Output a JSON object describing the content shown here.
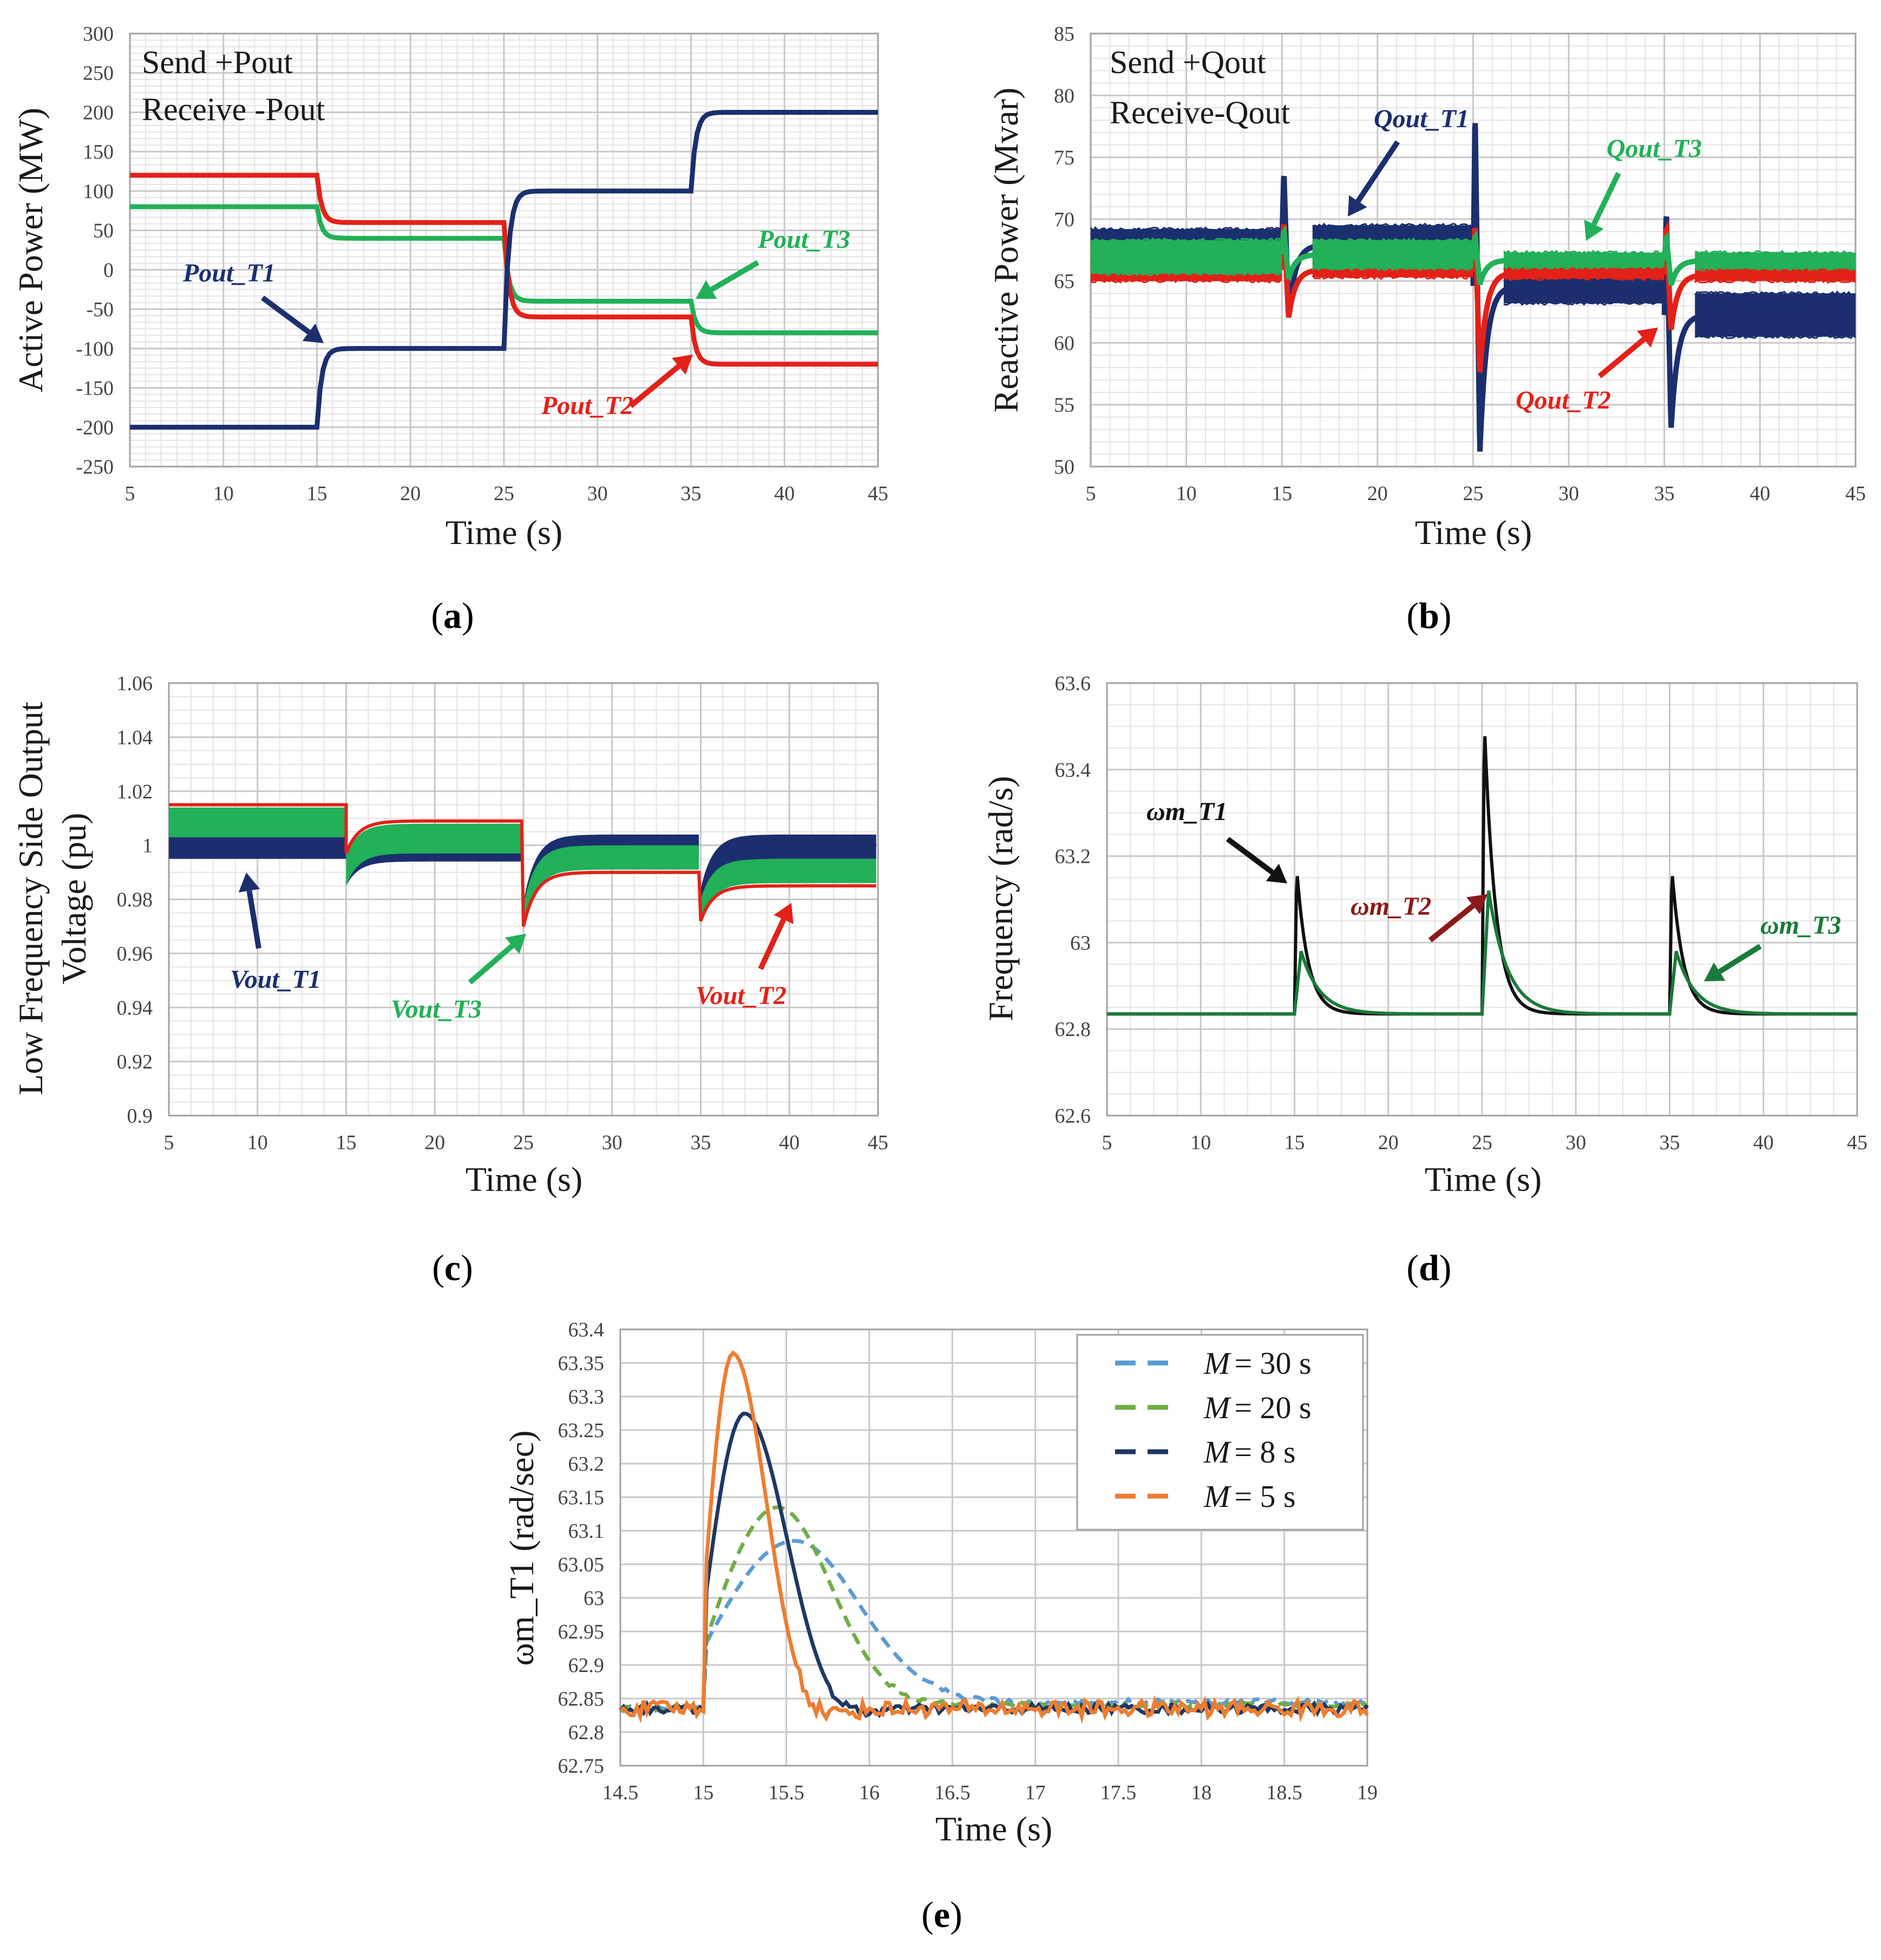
{
  "chart_data": [
    {
      "id": "a",
      "type": "line",
      "caption": "a",
      "xlabel": "Time (s)",
      "ylabel": "Active Power (MW)",
      "xlim": [
        5,
        45
      ],
      "ylim": [
        -250,
        300
      ],
      "xticks": [
        "5",
        "10",
        "15",
        "20",
        "25",
        "30",
        "35",
        "40",
        "45"
      ],
      "yticks": [
        "-250",
        "-200",
        "-150",
        "-100",
        "-50",
        "0",
        "50",
        "100",
        "150",
        "200",
        "250",
        "300"
      ],
      "notes": [
        "Send +Pout",
        "Receive -Pout"
      ],
      "series": [
        {
          "name": "Pout_T1",
          "color": "#1b2f6e",
          "x": [
            5,
            15,
            45
          ],
          "y": [
            -200,
            -100,
            200
          ],
          "steps": [
            [
              5,
              -200
            ],
            [
              15,
              -100
            ],
            [
              25,
              100
            ],
            [
              35,
              200
            ]
          ]
        },
        {
          "name": "Pout_T2",
          "color": "#e32119",
          "steps": [
            [
              5,
              120
            ],
            [
              15,
              60
            ],
            [
              25,
              -60
            ],
            [
              35,
              -120
            ]
          ]
        },
        {
          "name": "Pout_T3",
          "color": "#22b058",
          "steps": [
            [
              5,
              80
            ],
            [
              15,
              40
            ],
            [
              25,
              -40
            ],
            [
              35,
              -80
            ]
          ]
        }
      ],
      "annotations": [
        {
          "label": "Pout_T1",
          "color": "#1b2f6e"
        },
        {
          "label": "Pout_T2",
          "color": "#e32119"
        },
        {
          "label": "Pout_T3",
          "color": "#22b058"
        }
      ]
    },
    {
      "id": "b",
      "type": "line",
      "caption": "b",
      "xlabel": "Time (s)",
      "ylabel": "Reactive Power (Mvar)",
      "xlim": [
        5,
        45
      ],
      "ylim": [
        50,
        85
      ],
      "xticks": [
        "5",
        "10",
        "15",
        "20",
        "25",
        "30",
        "35",
        "40",
        "45"
      ],
      "yticks": [
        "50",
        "55",
        "60",
        "65",
        "70",
        "75",
        "80",
        "85"
      ],
      "notes": [
        "Send +Qout",
        "Receive-Qout"
      ],
      "series": [
        {
          "name": "Qout_T1",
          "color": "#1b2f6e",
          "bands": [
            [
              5,
              15,
              66.5,
              69.2
            ],
            [
              15,
              25,
              66.3,
              69.5
            ],
            [
              25,
              35,
              63.2,
              66.0
            ],
            [
              35,
              45,
              60.5,
              64.0
            ]
          ],
          "spikes": [
            [
              15,
              74,
              62
            ],
            [
              25,
              79,
              51
            ],
            [
              35,
              71,
              53
            ]
          ]
        },
        {
          "name": "Qout_T2",
          "color": "#e32119",
          "bands": [
            [
              5,
              15,
              65.0,
              66.0
            ],
            [
              15,
              25,
              65.3,
              66.5
            ],
            [
              25,
              35,
              65.2,
              66.2
            ],
            [
              35,
              45,
              65.0,
              66.0
            ]
          ]
        },
        {
          "name": "Qout_T3",
          "color": "#22b058",
          "bands": [
            [
              5,
              15,
              65.6,
              68.3
            ],
            [
              15,
              25,
              66.0,
              68.3
            ],
            [
              25,
              35,
              66.1,
              67.3
            ],
            [
              35,
              45,
              66.0,
              67.3
            ]
          ]
        }
      ],
      "annotations": [
        {
          "label": "Qout_T1",
          "color": "#1b2f6e"
        },
        {
          "label": "Qout_T2",
          "color": "#e32119"
        },
        {
          "label": "Qout_T3",
          "color": "#22b058"
        }
      ]
    },
    {
      "id": "c",
      "type": "line",
      "caption": "c",
      "xlabel": "Time (s)",
      "ylabel": "Low Frequency Side Output Voltage (pu)",
      "ylabel_lines": [
        "Low Frequency Side Output",
        "Voltage (pu)"
      ],
      "xlim": [
        5,
        45
      ],
      "ylim": [
        0.9,
        1.06
      ],
      "xticks": [
        "5",
        "10",
        "15",
        "20",
        "25",
        "30",
        "35",
        "40",
        "45"
      ],
      "yticks": [
        "0.9",
        "0.92",
        "0.94",
        "0.96",
        "0.98",
        "1",
        "1.02",
        "1.04",
        "1.06"
      ],
      "series": [
        {
          "name": "Vout_T1",
          "color": "#1b2f6e",
          "bands": [
            [
              5,
              15,
              0.995,
              1.003
            ],
            [
              15,
              25,
              0.994,
              0.999
            ],
            [
              25,
              35,
              0.996,
              1.004
            ],
            [
              35,
              45,
              0.995,
              1.004
            ]
          ]
        },
        {
          "name": "Vout_T2",
          "color": "#e32119",
          "levels": [
            [
              5,
              15,
              1.015
            ],
            [
              15,
              25,
              1.009
            ],
            [
              25,
              35,
              0.99
            ],
            [
              35,
              45,
              0.985
            ]
          ]
        },
        {
          "name": "Vout_T3",
          "color": "#22b058",
          "bands": [
            [
              5,
              15,
              1.003,
              1.014
            ],
            [
              15,
              25,
              0.997,
              1.008
            ],
            [
              25,
              35,
              0.991,
              1.0
            ],
            [
              35,
              45,
              0.986,
              0.995
            ]
          ]
        }
      ],
      "annotations": [
        {
          "label": "Vout_T1",
          "color": "#1b2f6e"
        },
        {
          "label": "Vout_T3",
          "color": "#22b058"
        },
        {
          "label": "Vout_T2",
          "color": "#e32119"
        }
      ]
    },
    {
      "id": "d",
      "type": "line",
      "caption": "d",
      "xlabel": "Time (s)",
      "ylabel": "Frequency (rad/s)",
      "xlim": [
        5,
        45
      ],
      "ylim": [
        62.6,
        63.6
      ],
      "xticks": [
        "5",
        "10",
        "15",
        "20",
        "25",
        "30",
        "35",
        "40",
        "45"
      ],
      "yticks": [
        "62.6",
        "62.8",
        "63",
        "63.2",
        "63.4",
        "63.6"
      ],
      "baseline": 62.835,
      "series": [
        {
          "name": "ωm_T1",
          "color": "#111111",
          "peaks": [
            [
              15,
              63.17
            ],
            [
              25,
              63.51
            ],
            [
              35,
              63.17
            ]
          ]
        },
        {
          "name": "ωm_T2",
          "color": "#8b1a1a",
          "peaks": [
            [
              15,
              62.98
            ],
            [
              25,
              63.12
            ],
            [
              35,
              62.98
            ]
          ]
        },
        {
          "name": "ωm_T3",
          "color": "#1a7a3a",
          "peaks": [
            [
              15,
              62.98
            ],
            [
              25,
              63.12
            ],
            [
              35,
              62.98
            ]
          ]
        }
      ],
      "annotations": [
        {
          "label": "ωm_T1",
          "color": "#111111"
        },
        {
          "label": "ωm_T2",
          "color": "#8b1a1a"
        },
        {
          "label": "ωm_T3",
          "color": "#1a7a3a"
        }
      ]
    },
    {
      "id": "e",
      "type": "line",
      "caption": "e",
      "xlabel": "Time (s)",
      "ylabel": "ωm_T1 (rad/sec)",
      "xlim": [
        14.5,
        19
      ],
      "ylim": [
        62.75,
        63.4
      ],
      "xticks": [
        "14.5",
        "15",
        "15.5",
        "16",
        "16.5",
        "17",
        "17.5",
        "18",
        "18.5",
        "19"
      ],
      "yticks": [
        "62.75",
        "62.8",
        "62.85",
        "62.9",
        "62.95",
        "63",
        "63.05",
        "63.1",
        "63.15",
        "63.2",
        "63.25",
        "63.3",
        "63.35",
        "63.4"
      ],
      "baseline": 62.835,
      "series": [
        {
          "name": "M = 30 s",
          "legend_text": "= 30 s",
          "color": "#5b9bd5",
          "peak_x": 15.55,
          "peak_y": 63.085,
          "settle": 62.845
        },
        {
          "name": "M = 20 s",
          "legend_text": "= 20 s",
          "color": "#70ad47",
          "peak_x": 15.45,
          "peak_y": 63.135,
          "settle": 62.84
        },
        {
          "name": "M = 8 s",
          "legend_text": "=  8 s",
          "color": "#1f3864",
          "peak_x": 15.25,
          "peak_y": 63.275,
          "settle": 62.835
        },
        {
          "name": "M = 5 s",
          "legend_text": "=  5 s",
          "color": "#ed7d31",
          "peak_x": 15.18,
          "peak_y": 63.365,
          "settle": 62.835
        }
      ]
    }
  ]
}
